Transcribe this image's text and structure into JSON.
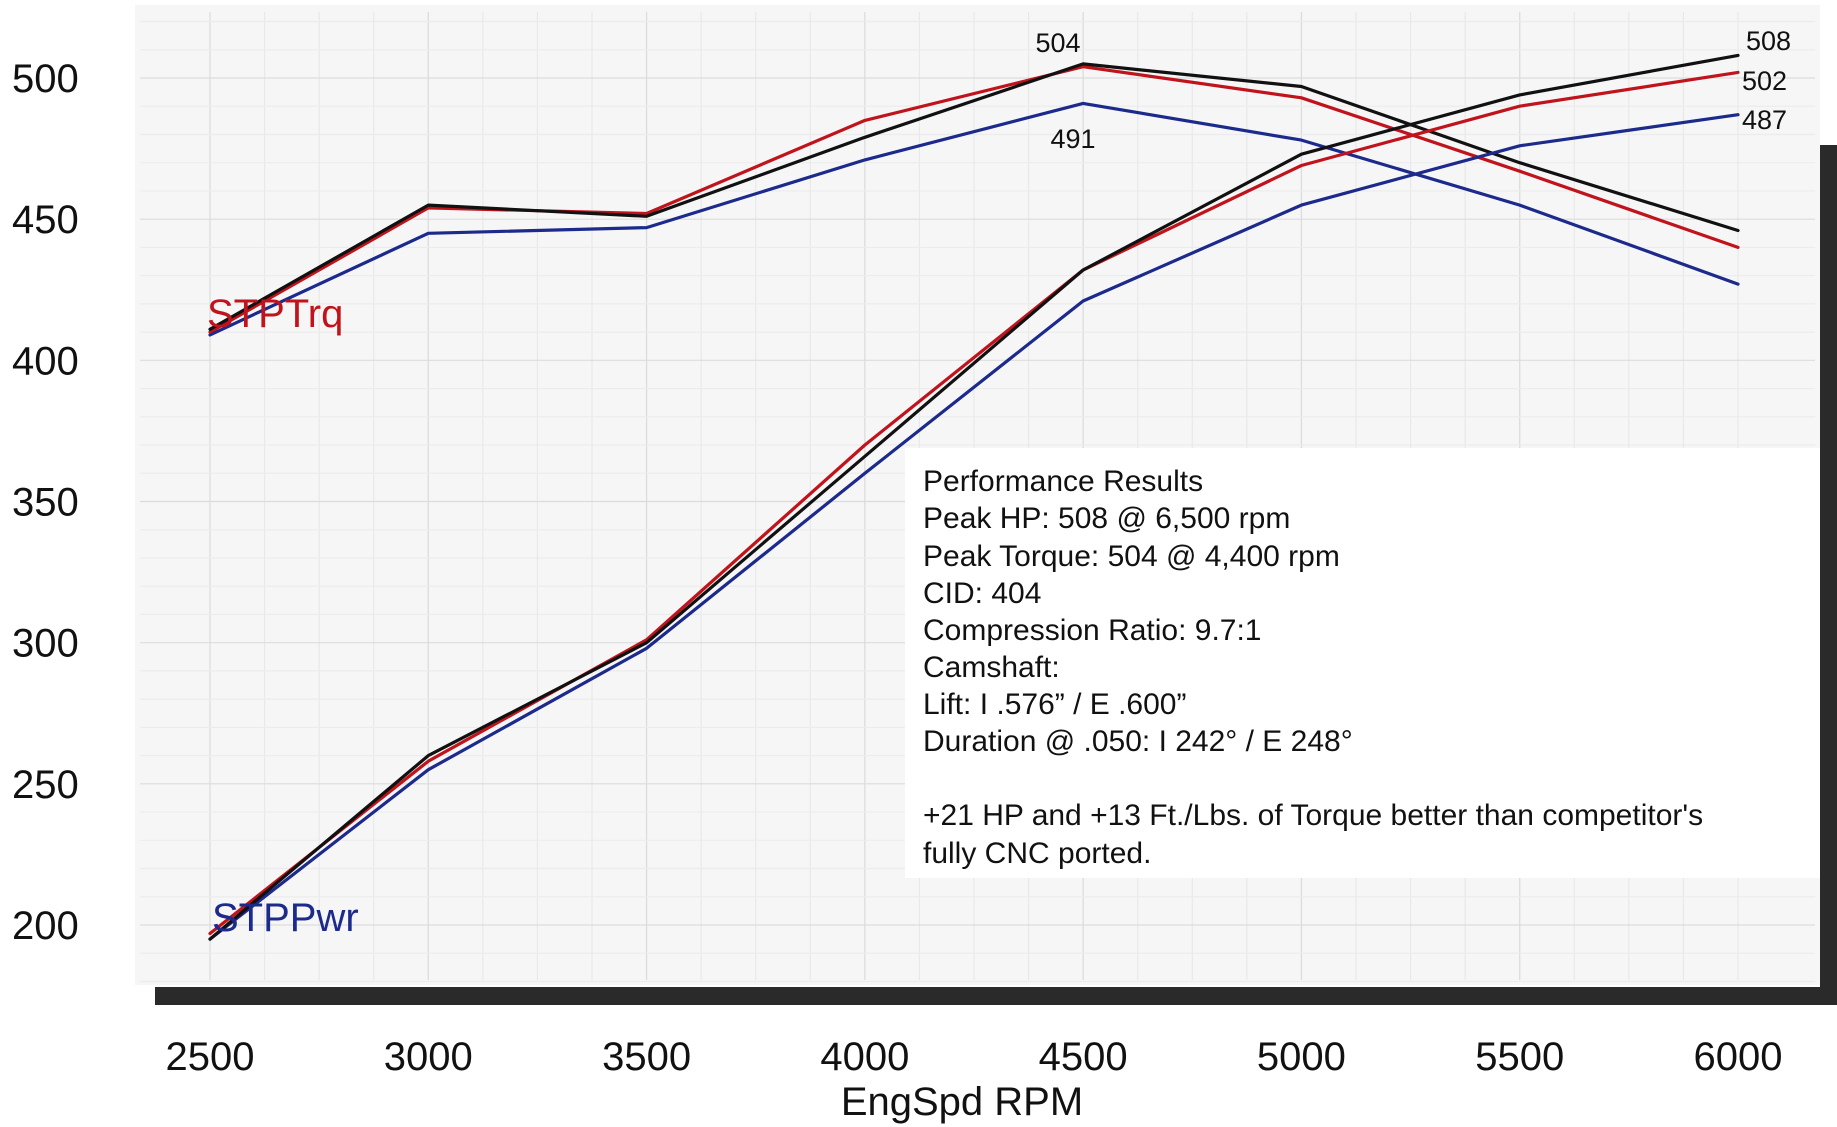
{
  "chart_data": {
    "type": "line",
    "x_axis_label": "EngSpd  RPM",
    "x_ticks": [
      "2500",
      "3000",
      "3500",
      "4000",
      "4500",
      "5000",
      "5500",
      "6000"
    ],
    "y_ticks": [
      "200",
      "250",
      "300",
      "350",
      "400",
      "450",
      "500"
    ],
    "ylim": [
      180,
      525
    ],
    "xlim": [
      2500,
      6000
    ],
    "grid": true,
    "x": [
      2500,
      3000,
      3500,
      4000,
      4500,
      5000,
      5500,
      6000
    ],
    "curve_labels": {
      "torque": "STPTrq",
      "power": "STPPwr"
    },
    "series": [
      {
        "group": "torque",
        "color": "#111111",
        "values": [
          411,
          455,
          451,
          479,
          505,
          497,
          470,
          446
        ]
      },
      {
        "group": "torque",
        "color": "#c0141c",
        "values": [
          410,
          454,
          452,
          485,
          504,
          493,
          467,
          440
        ]
      },
      {
        "group": "torque",
        "color": "#1c2a8c",
        "values": [
          409,
          445,
          447,
          471,
          491,
          478,
          455,
          427
        ]
      },
      {
        "group": "power",
        "color": "#111111",
        "values": [
          195,
          260,
          300,
          366,
          432,
          473,
          494,
          508
        ]
      },
      {
        "group": "power",
        "color": "#c0141c",
        "values": [
          197,
          258,
          301,
          370,
          432,
          469,
          490,
          502
        ]
      },
      {
        "group": "power",
        "color": "#1c2a8c",
        "values": [
          195,
          255,
          298,
          360,
          421,
          455,
          476,
          487
        ]
      }
    ],
    "peak_labels": [
      {
        "text": "504"
      },
      {
        "text": "491"
      },
      {
        "text": "508"
      },
      {
        "text": "502"
      },
      {
        "text": "487"
      }
    ],
    "annotation_lines": [
      "Performance Results",
      "Peak HP:  508 @ 6,500 rpm",
      "Peak Torque:  504 @ 4,400 rpm",
      "CID: 404",
      "Compression Ratio: 9.7:1",
      "Camshaft:",
      " Lift: I .576” / E .600”",
      " Duration @ .050: I 242° / E 248°",
      "",
      "+21 HP and +13 Ft./Lbs. of Torque better than competitor's",
      "fully CNC ported."
    ]
  }
}
